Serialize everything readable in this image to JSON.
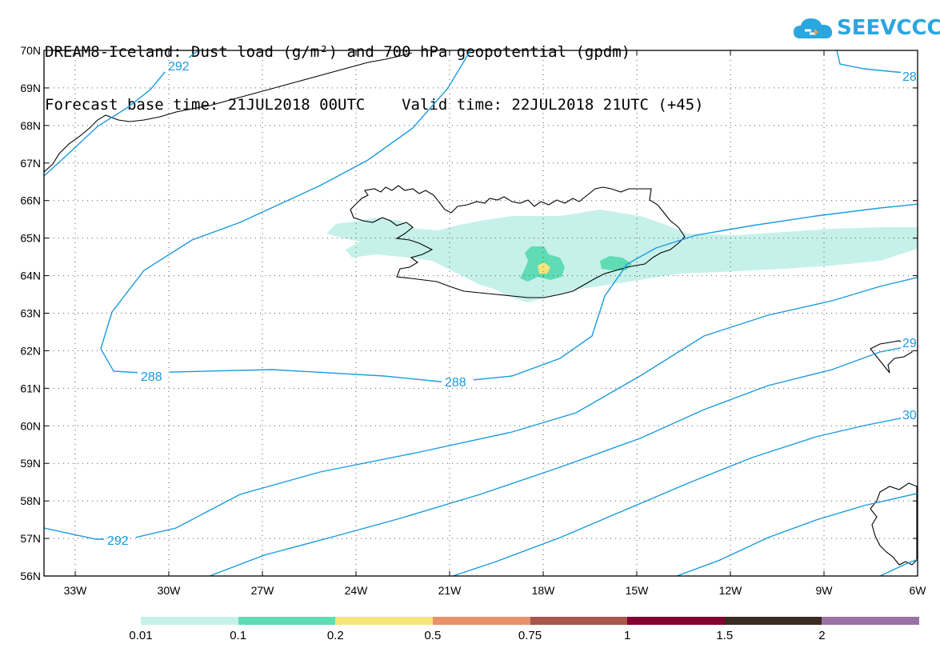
{
  "header": {
    "title_line1": "DREAM8-Iceland: Dust load (g/m²) and 700 hPa geopotential (gpdm)",
    "title_line2": "Forecast base time: 21JUL2018 00UTC    Valid time: 22JUL2018 21UTC (+45)"
  },
  "logo": {
    "text": "SEEVCCC",
    "icon": "cloud-icon",
    "color": "#2aa6e0"
  },
  "map": {
    "projection": "lat-lon",
    "lon_range": [
      -34,
      -6
    ],
    "lat_range": [
      56,
      70
    ],
    "lat_labels": [
      "70N",
      "69N",
      "68N",
      "67N",
      "66N",
      "65N",
      "64N",
      "63N",
      "62N",
      "61N",
      "60N",
      "59N",
      "58N",
      "57N",
      "56N"
    ],
    "lon_labels": [
      "33W",
      "30W",
      "27W",
      "24W",
      "21W",
      "18W",
      "15W",
      "12W",
      "9W",
      "6W"
    ],
    "contour_color": "#1a9be0",
    "contour_labels": [
      "292",
      "288",
      "288",
      "292",
      "28",
      "29",
      "30"
    ]
  },
  "colorbar": {
    "thresholds": [
      "0.01",
      "0.1",
      "0.2",
      "0.5",
      "0.75",
      "1",
      "1.5",
      "2"
    ],
    "colors": [
      "#c6f1ea",
      "#5fdcb4",
      "#f7e57a",
      "#e8916a",
      "#a9564b",
      "#800030",
      "#3a2a20",
      "#9a70a6"
    ]
  }
}
